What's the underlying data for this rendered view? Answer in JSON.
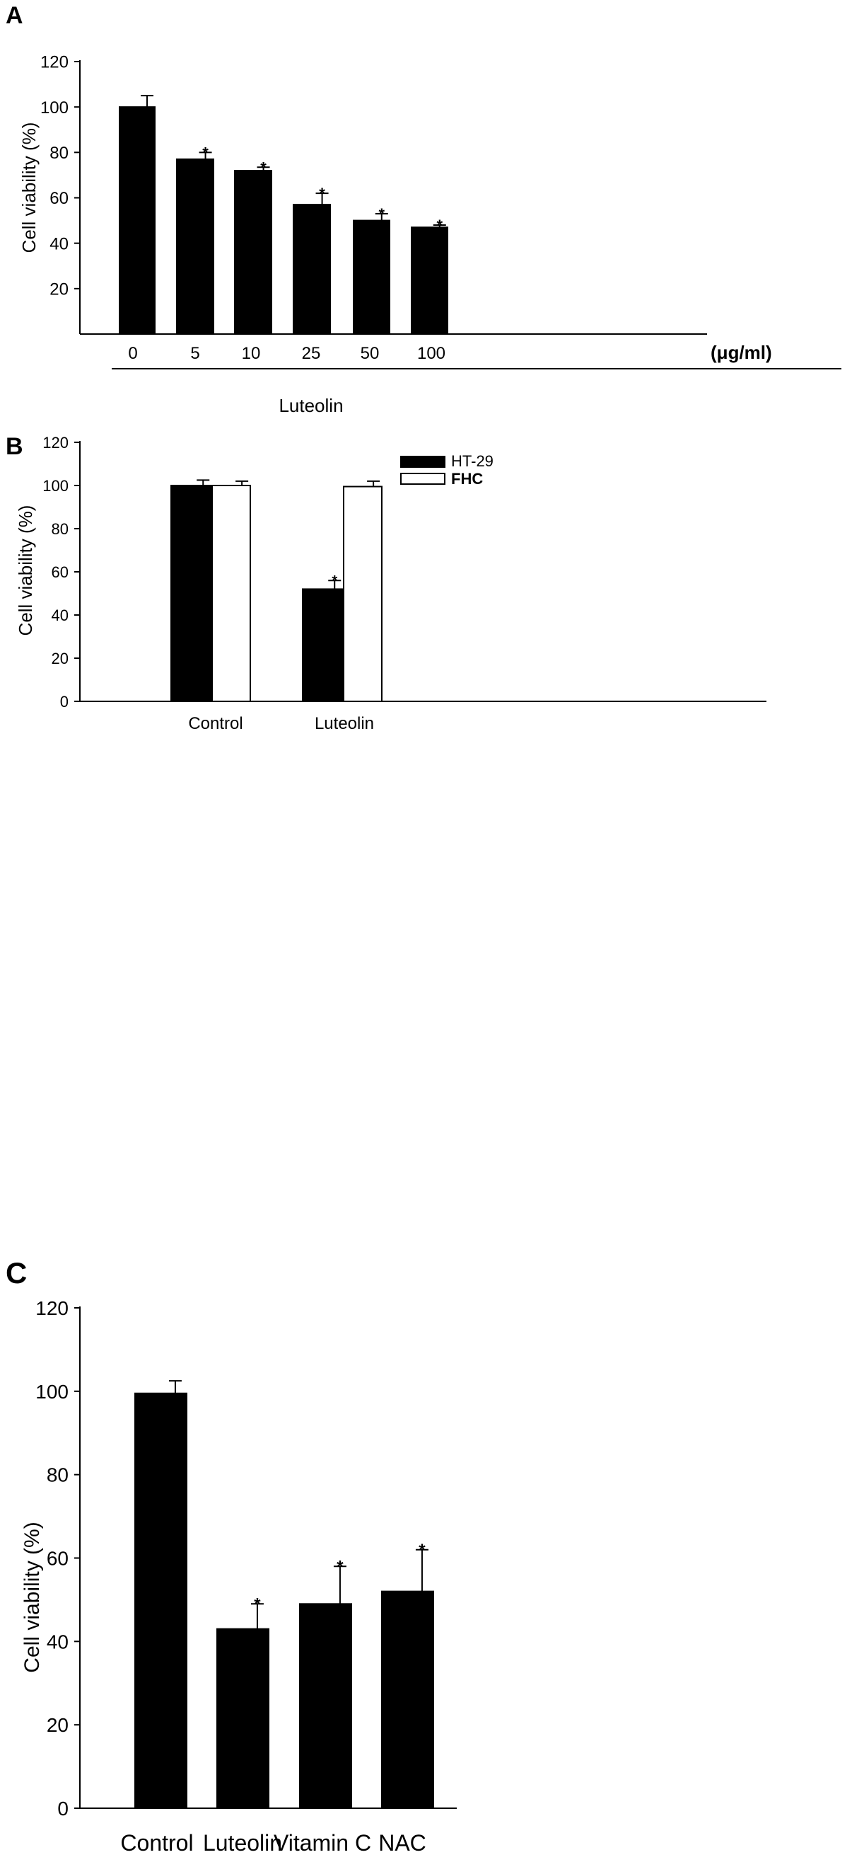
{
  "chart_data": [
    {
      "panel_label": "A",
      "type": "bar",
      "categories": [
        "0",
        "5",
        "10",
        "25",
        "50",
        "100"
      ],
      "series": [
        {
          "color": "#000000",
          "values": [
            100,
            77,
            72,
            57,
            50,
            47
          ],
          "errors": [
            5,
            3,
            1.5,
            5,
            3,
            1
          ],
          "significant": [
            false,
            true,
            true,
            true,
            true,
            true
          ]
        }
      ],
      "unit_label": "(μg/ml)",
      "xlabel": "Luteolin",
      "ylabel": "Cell viability (%)",
      "yticks": [
        20,
        40,
        60,
        80,
        100,
        120
      ],
      "ylim": [
        0,
        120
      ],
      "significance_marker": "*"
    },
    {
      "panel_label": "B",
      "type": "bar",
      "categories": [
        "Control",
        "Luteolin"
      ],
      "series": [
        {
          "name": "HT-29",
          "color": "#000000",
          "values": [
            100,
            52
          ],
          "errors": [
            2.5,
            4
          ],
          "significant": [
            false,
            true
          ]
        },
        {
          "name": "FHC",
          "color": "#ffffff",
          "values": [
            100,
            99.5
          ],
          "errors": [
            2,
            2.5
          ],
          "significant": [
            false,
            false
          ]
        }
      ],
      "legend": "top-right",
      "xlabel": "",
      "ylabel": "Cell viability (%)",
      "yticks": [
        0,
        20,
        40,
        60,
        80,
        100,
        120
      ],
      "ylim": [
        0,
        120
      ],
      "significance_marker": "*"
    },
    {
      "panel_label": "C",
      "type": "bar",
      "categories": [
        "Control",
        "Luteolin",
        "Vitamin C",
        "NAC"
      ],
      "series": [
        {
          "color": "#000000",
          "values": [
            99.5,
            43,
            49,
            52
          ],
          "errors": [
            3,
            6,
            9,
            10
          ],
          "significant": [
            false,
            true,
            true,
            true
          ]
        }
      ],
      "xlabel": "",
      "ylabel": "Cell viability (%)",
      "yticks": [
        0,
        20,
        40,
        60,
        80,
        100,
        120
      ],
      "ylim": [
        0,
        120
      ],
      "significance_marker": "*"
    }
  ]
}
